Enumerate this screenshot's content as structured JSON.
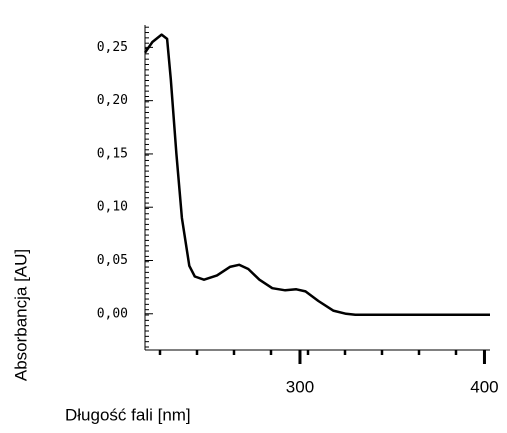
{
  "chart_data": {
    "type": "line",
    "x_label": "Długość fali [nm]",
    "y_label": "Absorbancja [AU]",
    "x": [
      216,
      220,
      225,
      228,
      230,
      233,
      236,
      240,
      243,
      248,
      255,
      262,
      267,
      272,
      278,
      285,
      292,
      298,
      303,
      310,
      318,
      325,
      330,
      360,
      380,
      403
    ],
    "series": [
      {
        "color": "#000000",
        "values": [
          0.245,
          0.255,
          0.262,
          0.258,
          0.22,
          0.15,
          0.09,
          0.045,
          0.035,
          0.032,
          0.036,
          0.044,
          0.046,
          0.042,
          0.032,
          0.024,
          0.022,
          0.023,
          0.021,
          0.012,
          0.003,
          0.0,
          -0.001,
          -0.001,
          -0.001,
          -0.001
        ]
      }
    ],
    "xlim": [
      216,
      403
    ],
    "ylim": [
      -0.034,
      0.271
    ],
    "xticks": [
      300,
      400
    ],
    "yticks": [
      {
        "value": 0.0,
        "label": "0,00"
      },
      {
        "value": 0.05,
        "label": "0,05"
      },
      {
        "value": 0.1,
        "label": "0,10"
      },
      {
        "value": 0.15,
        "label": "0,15"
      },
      {
        "value": 0.2,
        "label": "0,20"
      },
      {
        "value": 0.25,
        "label": "0,25"
      }
    ]
  }
}
